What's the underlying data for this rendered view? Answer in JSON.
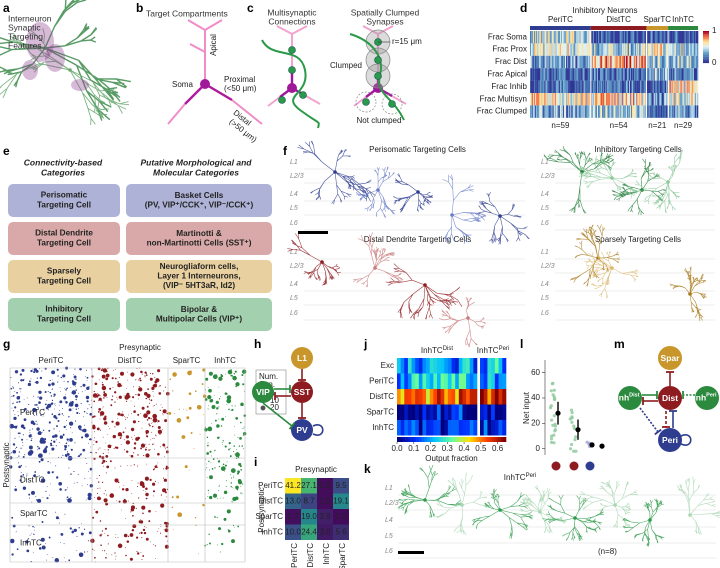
{
  "figure": {
    "a": {
      "label": "a",
      "text": [
        "Interneuron",
        "Synaptic",
        "Targeting",
        "Features"
      ]
    },
    "b": {
      "label": "b",
      "title": "Target Compartments",
      "apical": "Apical",
      "soma": "Soma",
      "proximal": [
        "Proximal",
        "(<50 μm)"
      ],
      "distal": [
        "Distal",
        "(>50 μm)"
      ]
    },
    "c": {
      "label": "c",
      "title_left": [
        "Multisynaptic",
        "Connections"
      ],
      "title_right": [
        "Spatially Clumped",
        "Synapses"
      ],
      "clumped": "Clumped",
      "radius": "r=15 μm",
      "not_clumped": "Not clumped"
    },
    "d": {
      "label": "d",
      "title": "Inhibitory Neurons",
      "rows": [
        "Frac Soma",
        "Frac Prox",
        "Frac Dist",
        "Frac Apical",
        "Frac Inhib",
        "Frac Multisyn",
        "Frac Clumped"
      ],
      "groups": [
        "PeriTC",
        "DistTC",
        "SparTC",
        "InhTC"
      ],
      "counts": [
        {
          "value": 59,
          "label": "n=59"
        },
        {
          "value": 54,
          "label": "n=54"
        },
        {
          "value": 21,
          "label": "n=21"
        },
        {
          "value": 29,
          "label": "n=29"
        }
      ],
      "colorbar_ticks": [
        1,
        0
      ]
    },
    "e": {
      "label": "e",
      "left_header": [
        "Connectivity-based",
        "Categories"
      ],
      "right_header": [
        "Putative Morphological and",
        "Molecular Categories"
      ],
      "rows": [
        {
          "left": [
            "Perisomatic",
            "Targeting Cell"
          ],
          "right": [
            "Basket Cells",
            "(PV, VIP⁺/CCK⁺, VIP⁻/CCK⁺)"
          ]
        },
        {
          "left": [
            "Distal Dendrite",
            "Targeting Cell"
          ],
          "right": [
            "Martinotti &",
            "non-Martinotti Cells (SST⁺)"
          ]
        },
        {
          "left": [
            "Sparsely",
            "Targeting Cell"
          ],
          "right": [
            "Neurogliaform cells,",
            "Layer 1 Interneurons,",
            "(VIP⁻ 5HT3aR, Id2)"
          ]
        },
        {
          "left": [
            "Inhibitory",
            "Targeting Cell"
          ],
          "right": [
            "Bipolar &",
            "Multipolar Cells (VIP⁺)"
          ]
        }
      ]
    },
    "f": {
      "label": "f",
      "layers": [
        "L1",
        "L2/3",
        "L4",
        "L5",
        "L6"
      ],
      "panels": [
        "Perisomatic Targeting Cells",
        "Inhibitory Targeting Cells",
        "Distal Dendrite Targeting Cells",
        "Sparsely Targeting Cells"
      ]
    },
    "g": {
      "label": "g",
      "x_title": "Presynaptic",
      "y_title": "Postsynaptic",
      "columns": [
        "PeriTC",
        "DistTC",
        "SparTC",
        "InhTC"
      ],
      "rows": [
        "PeriTC",
        "DistTC",
        "SparTC",
        "InhTC"
      ],
      "legend_title": [
        "Num.",
        "Syn."
      ],
      "legend_sizes": [
        5,
        10,
        20
      ]
    },
    "h": {
      "label": "h",
      "nodes": [
        "L1",
        "VIP",
        "SST",
        "PV"
      ]
    },
    "i": {
      "label": "i",
      "x_title": "Presynaptic",
      "y_title": "Postsynaptic",
      "rows": [
        "PeriTC",
        "DistTC",
        "SparTC",
        "InhTC"
      ],
      "columns": [
        "PeriTC",
        "DistTC",
        "InhTC",
        "SparTC"
      ],
      "values": [
        [
          41.2,
          27.1,
          1.5,
          9.5
        ],
        [
          13.0,
          8.7,
          1.5,
          19.1
        ],
        [
          1.7,
          19.0,
          3.9,
          1.3
        ],
        [
          10.0,
          24.4,
          3.0,
          5.6
        ]
      ],
      "value_labels": [
        [
          "41.2",
          "27.1",
          "1.5",
          "9.5"
        ],
        [
          "13.0",
          "8.7",
          "1.5",
          "19.1"
        ],
        [
          "1.7",
          "19.0",
          "3.9",
          "1.3"
        ],
        [
          "10.0",
          "24.4",
          "3.0",
          "5.6"
        ]
      ]
    },
    "j": {
      "label": "j",
      "column_groups": [
        {
          "base": "InhTC",
          "sup": "Dist"
        },
        {
          "base": "InhTC",
          "sup": "Peri"
        }
      ],
      "rows": [
        "Exc",
        "PeriTC",
        "DistTC",
        "SparTC",
        "InhTC"
      ],
      "colorbar_label": "Output fraction",
      "colorbar_lim": [
        0,
        0.65
      ],
      "colorbar_ticks": [
        {
          "value": 0,
          "label": "0.0"
        },
        0.1,
        0.2,
        0.3,
        0.4,
        0.5,
        0.6
      ]
    },
    "k": {
      "label": "k",
      "title": {
        "base": "InhTC",
        "sup": "Peri"
      },
      "layers": [
        "L1",
        "L2/3",
        "L4",
        "L5",
        "L6"
      ],
      "count": "(n=8)"
    },
    "l": {
      "label": "l",
      "ylabel": "Net input",
      "ylim": [
        -5,
        70
      ],
      "yticks": [
        0,
        20,
        40,
        60
      ],
      "means": [
        28,
        15,
        3,
        2
      ],
      "errors": [
        9,
        8,
        1.5,
        1
      ]
    },
    "m": {
      "label": "m",
      "spar": "Spar",
      "dist": "Dist",
      "peri": "Peri",
      "inh_dist": {
        "base": "Inh",
        "sup": "Dist"
      },
      "inh_peri": {
        "base": "Inh",
        "sup": "Peri"
      }
    }
  }
}
